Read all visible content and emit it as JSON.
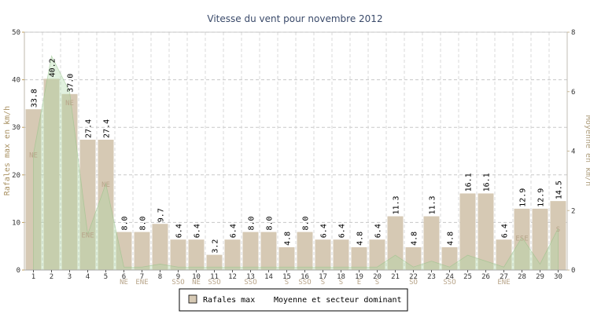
{
  "chart_data": {
    "type": "bar",
    "title": "Vitesse du vent pour novembre 2012",
    "ylabel": "Rafales max en km/h",
    "y2label": "Moyenne en km/h",
    "ylim": [
      0,
      50
    ],
    "y2lim": [
      0,
      8
    ],
    "yticks": [
      0,
      10,
      20,
      30,
      40,
      50
    ],
    "y2ticks": [
      0,
      2,
      4,
      6,
      8
    ],
    "grid": true,
    "legend_position": "bottom",
    "categories": [
      "1",
      "2",
      "3",
      "4",
      "5",
      "6",
      "7",
      "8",
      "9",
      "10",
      "11",
      "12",
      "13",
      "14",
      "15",
      "16",
      "17",
      "18",
      "19",
      "20",
      "21",
      "22",
      "23",
      "24",
      "25",
      "26",
      "27",
      "28",
      "29",
      "30"
    ],
    "series": [
      {
        "name": "Rafales max",
        "type": "bar",
        "color": "#d6c9b4",
        "values": [
          33.8,
          40.2,
          37.0,
          27.4,
          27.4,
          8.0,
          8.0,
          9.7,
          6.4,
          6.4,
          3.2,
          6.4,
          8.0,
          8.0,
          4.8,
          8.0,
          6.4,
          6.4,
          4.8,
          6.4,
          11.3,
          4.8,
          11.3,
          4.8,
          16.1,
          16.1,
          6.4,
          12.9,
          12.9,
          14.5
        ],
        "value_labels": [
          "33.8",
          "40.2",
          "37.0",
          "27.4",
          "27.4",
          "8.0",
          "8.0",
          "9.7",
          "6.4",
          "6.4",
          "3.2",
          "6.4",
          "8.0",
          "8.0",
          "4.8",
          "8.0",
          "6.4",
          "6.4",
          "4.8",
          "6.4",
          "11.3",
          "4.8",
          "11.3",
          "4.8",
          "16.1",
          "16.1",
          "6.4",
          "12.9",
          "12.9",
          "14.5"
        ]
      },
      {
        "name": "Moyenne et secteur dominant",
        "type": "area",
        "axis": "right",
        "color": "#a8d8a0",
        "values": [
          3.9,
          7.2,
          6.0,
          1.2,
          2.9,
          0.1,
          0.1,
          0.2,
          0.1,
          0.1,
          0.1,
          0.1,
          0.1,
          0.1,
          0.1,
          0.1,
          0.1,
          0.1,
          0.1,
          0.1,
          0.5,
          0.1,
          0.3,
          0.1,
          0.5,
          0.3,
          0.1,
          1.1,
          0.2,
          1.4
        ]
      }
    ],
    "sectors": [
      "NE",
      "",
      "NE",
      "ENE",
      "NE",
      "NE",
      "ENE",
      "",
      "SSO",
      "NE",
      "SSO",
      "",
      "SSO",
      "",
      "S",
      "SSO",
      "S",
      "S",
      "E",
      "S",
      "",
      "SO",
      "",
      "SSO",
      "",
      "",
      "ENE",
      "ESE",
      "",
      "S"
    ],
    "sector_pos": [
      "in",
      "",
      "in",
      "in",
      "in",
      "below",
      "below",
      "",
      "below",
      "below",
      "below",
      "",
      "below",
      "",
      "below",
      "below",
      "below",
      "below",
      "below",
      "below",
      "",
      "below",
      "",
      "below",
      "",
      "",
      "below",
      "in",
      "",
      "in"
    ]
  }
}
